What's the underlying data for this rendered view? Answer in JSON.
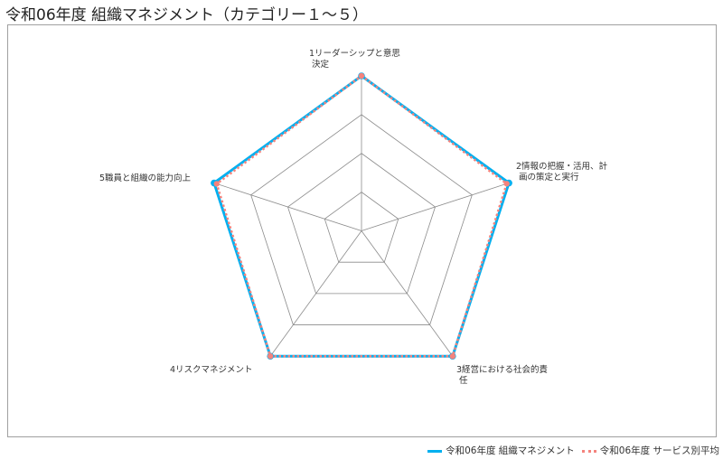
{
  "chart_data": {
    "type": "radar",
    "title": "令和06年度 組織マネジメント（カテゴリー１～５）",
    "categories": [
      [
        "1リーダーシップと意思",
        "決定"
      ],
      [
        "2情報の把握・活用、計",
        "画の策定と実行"
      ],
      [
        "3経営における社会的責",
        "任"
      ],
      [
        "4リスクマネジメント"
      ],
      [
        "5職員と組織の能力向上"
      ]
    ],
    "rlim": [
      0,
      4
    ],
    "rings": 4,
    "grid": true,
    "legend_position": "bottom-right",
    "series": [
      {
        "name": "令和06年度 組織マネジメント",
        "values": [
          4,
          4,
          4,
          4,
          4
        ],
        "color": "#00b0f0",
        "style": "solid"
      },
      {
        "name": "令和06年度 サービス別平均",
        "values": [
          4,
          3.94,
          4,
          4,
          3.93
        ],
        "color": "#f4837d",
        "style": "dotted"
      }
    ]
  }
}
